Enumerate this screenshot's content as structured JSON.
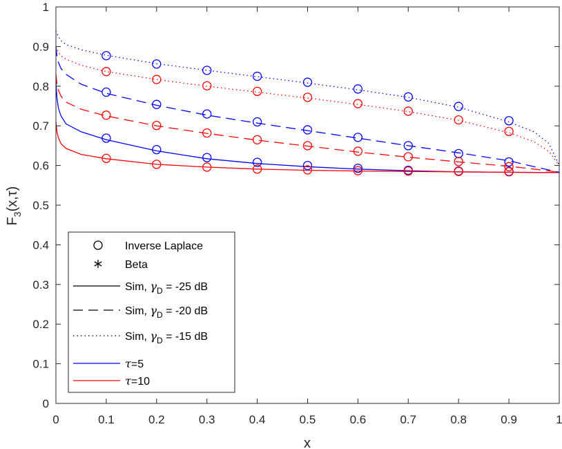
{
  "chart_data": {
    "type": "line",
    "xlabel": "x",
    "ylabel": {
      "base": "F",
      "sub": "3",
      "args": "(x,τ)"
    },
    "xlim": [
      0,
      1
    ],
    "ylim": [
      0,
      1
    ],
    "xticks": [
      0,
      0.1,
      0.2,
      0.3,
      0.4,
      0.5,
      0.6,
      0.7,
      0.8,
      0.9,
      1
    ],
    "yticks": [
      0,
      0.1,
      0.2,
      0.3,
      0.4,
      0.5,
      0.6,
      0.7,
      0.8,
      0.9,
      1
    ],
    "xtick_labels": [
      "0",
      "0.1",
      "0.2",
      "0.3",
      "0.4",
      "0.5",
      "0.6",
      "0.7",
      "0.8",
      "0.9",
      "1"
    ],
    "ytick_labels": [
      "0",
      "0.1",
      "0.2",
      "0.3",
      "0.4",
      "0.5",
      "0.6",
      "0.7",
      "0.8",
      "0.9",
      "1"
    ],
    "colors": {
      "tau5": "#0000ff",
      "tau10": "#ff0000",
      "axis": "#262626"
    },
    "series": [
      {
        "name": "Sim, gamma_D=-25 dB, tau=5",
        "style": "solid",
        "color": "#0000ff",
        "x": [
          0,
          0.002,
          0.005,
          0.01,
          0.02,
          0.05,
          0.1,
          0.2,
          0.3,
          0.4,
          0.5,
          0.6,
          0.7,
          0.8,
          0.9,
          1.0
        ],
        "y": [
          0.81,
          0.77,
          0.745,
          0.725,
          0.705,
          0.685,
          0.665,
          0.637,
          0.617,
          0.605,
          0.597,
          0.591,
          0.587,
          0.584,
          0.583,
          0.582
        ]
      },
      {
        "name": "Sim, gamma_D=-25 dB, tau=10",
        "style": "solid",
        "color": "#ff0000",
        "x": [
          0,
          0.002,
          0.005,
          0.01,
          0.02,
          0.05,
          0.1,
          0.2,
          0.3,
          0.4,
          0.5,
          0.6,
          0.7,
          0.8,
          0.9,
          1.0
        ],
        "y": [
          0.71,
          0.685,
          0.67,
          0.655,
          0.643,
          0.628,
          0.617,
          0.603,
          0.596,
          0.591,
          0.588,
          0.586,
          0.585,
          0.584,
          0.583,
          0.582
        ]
      },
      {
        "name": "Sim, gamma_D=-20 dB, tau=5",
        "style": "dashed",
        "color": "#0000ff",
        "x": [
          0,
          0.002,
          0.005,
          0.01,
          0.02,
          0.05,
          0.1,
          0.2,
          0.3,
          0.4,
          0.5,
          0.6,
          0.7,
          0.8,
          0.9,
          0.95,
          1.0
        ],
        "y": [
          0.9,
          0.875,
          0.86,
          0.845,
          0.83,
          0.805,
          0.782,
          0.752,
          0.727,
          0.707,
          0.688,
          0.669,
          0.65,
          0.632,
          0.612,
          0.597,
          0.583
        ]
      },
      {
        "name": "Sim, gamma_D=-20 dB, tau=10",
        "style": "dashed",
        "color": "#ff0000",
        "x": [
          0,
          0.002,
          0.005,
          0.01,
          0.02,
          0.05,
          0.1,
          0.2,
          0.3,
          0.4,
          0.5,
          0.6,
          0.7,
          0.8,
          0.9,
          0.95,
          1.0
        ],
        "y": [
          0.83,
          0.805,
          0.79,
          0.775,
          0.76,
          0.742,
          0.725,
          0.7,
          0.681,
          0.664,
          0.649,
          0.634,
          0.621,
          0.609,
          0.598,
          0.591,
          0.583
        ]
      },
      {
        "name": "Sim, gamma_D=-15 dB, tau=5",
        "style": "dotted",
        "color": "#0000ff",
        "x": [
          0,
          0.005,
          0.01,
          0.02,
          0.05,
          0.1,
          0.2,
          0.3,
          0.4,
          0.5,
          0.6,
          0.7,
          0.8,
          0.9,
          0.95,
          0.98,
          1.0
        ],
        "y": [
          0.94,
          0.925,
          0.915,
          0.905,
          0.892,
          0.878,
          0.857,
          0.84,
          0.824,
          0.808,
          0.791,
          0.772,
          0.747,
          0.71,
          0.685,
          0.655,
          0.6
        ]
      },
      {
        "name": "Sim, gamma_D=-15 dB, tau=10",
        "style": "dotted",
        "color": "#ff0000",
        "x": [
          0,
          0.005,
          0.01,
          0.02,
          0.05,
          0.1,
          0.2,
          0.3,
          0.4,
          0.5,
          0.6,
          0.7,
          0.8,
          0.9,
          0.95,
          0.98,
          1.0
        ],
        "y": [
          0.9,
          0.885,
          0.877,
          0.868,
          0.853,
          0.837,
          0.817,
          0.8,
          0.785,
          0.77,
          0.754,
          0.736,
          0.714,
          0.683,
          0.66,
          0.635,
          0.6
        ]
      }
    ],
    "markers": [
      {
        "name": "Inverse Laplace, gamma_D=-25 dB, tau=5",
        "color": "#0000ff",
        "x": [
          0.1,
          0.2,
          0.3,
          0.4,
          0.5,
          0.6,
          0.7,
          0.8,
          0.9
        ],
        "y": [
          0.669,
          0.64,
          0.62,
          0.608,
          0.6,
          0.593,
          0.588,
          0.586,
          0.585
        ]
      },
      {
        "name": "Inverse Laplace, gamma_D=-25 dB, tau=10",
        "color": "#ff0000",
        "x": [
          0.1,
          0.2,
          0.3,
          0.4,
          0.5,
          0.6,
          0.7,
          0.8,
          0.9
        ],
        "y": [
          0.618,
          0.603,
          0.596,
          0.591,
          0.589,
          0.587,
          0.586,
          0.585,
          0.584
        ]
      },
      {
        "name": "Inverse Laplace, gamma_D=-20 dB, tau=5",
        "color": "#0000ff",
        "x": [
          0.1,
          0.2,
          0.3,
          0.4,
          0.5,
          0.6,
          0.7,
          0.8,
          0.9
        ],
        "y": [
          0.785,
          0.754,
          0.73,
          0.71,
          0.69,
          0.671,
          0.65,
          0.63,
          0.609
        ]
      },
      {
        "name": "Inverse Laplace, gamma_D=-20 dB, tau=10",
        "color": "#ff0000",
        "x": [
          0.1,
          0.2,
          0.3,
          0.4,
          0.5,
          0.6,
          0.7,
          0.8,
          0.9
        ],
        "y": [
          0.727,
          0.701,
          0.682,
          0.665,
          0.65,
          0.636,
          0.622,
          0.61,
          0.597
        ]
      },
      {
        "name": "Inverse Laplace, gamma_D=-15 dB, tau=5",
        "color": "#0000ff",
        "x": [
          0.1,
          0.2,
          0.3,
          0.4,
          0.5,
          0.6,
          0.7,
          0.8,
          0.9
        ],
        "y": [
          0.877,
          0.856,
          0.84,
          0.825,
          0.81,
          0.793,
          0.773,
          0.749,
          0.713
        ]
      },
      {
        "name": "Inverse Laplace, gamma_D=-15 dB, tau=10",
        "color": "#ff0000",
        "x": [
          0.1,
          0.2,
          0.3,
          0.4,
          0.5,
          0.6,
          0.7,
          0.8,
          0.9
        ],
        "y": [
          0.837,
          0.817,
          0.801,
          0.787,
          0.772,
          0.756,
          0.737,
          0.715,
          0.686
        ]
      }
    ],
    "legend": {
      "position": "bottom-left",
      "entries": [
        {
          "marker": "circle",
          "label": "Inverse Laplace"
        },
        {
          "marker": "asterisk",
          "label": "Beta"
        },
        {
          "line": "solid",
          "label_pre": "Sim, ",
          "gamma": "γ",
          "sub": "D",
          "label_post": " = -25 dB"
        },
        {
          "line": "dashed",
          "label_pre": "Sim, ",
          "gamma": "γ",
          "sub": "D",
          "label_post": " = -20 dB"
        },
        {
          "line": "dotted",
          "label_pre": "Sim, ",
          "gamma": "γ",
          "sub": "D",
          "label_post": " = -15 dB"
        },
        {
          "line": "solid",
          "color": "#0000ff",
          "tau": "τ",
          "label": "=5"
        },
        {
          "line": "solid",
          "color": "#ff0000",
          "tau": "τ",
          "label": "=10"
        }
      ]
    }
  }
}
